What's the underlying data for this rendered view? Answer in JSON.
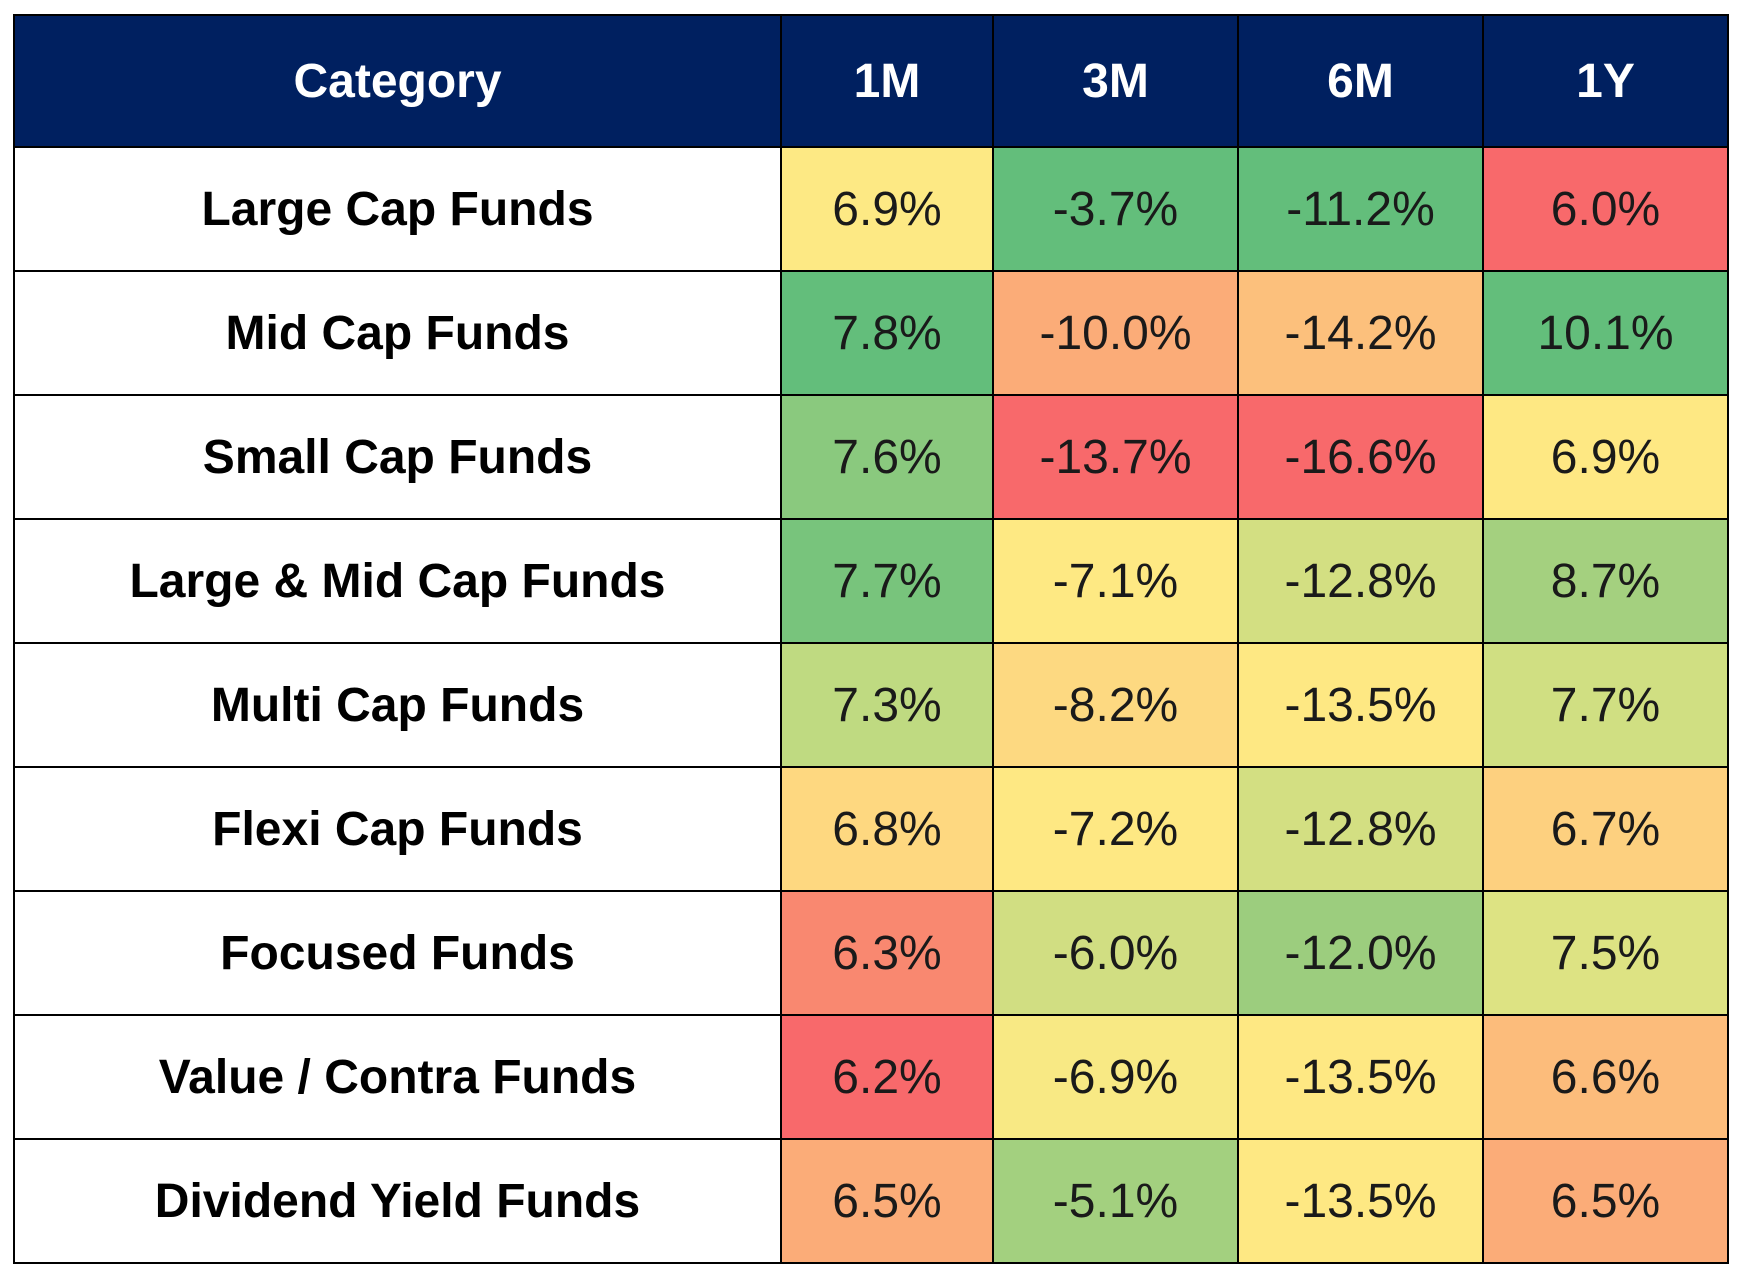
{
  "chart_data": {
    "type": "heatmap",
    "header": {
      "category": "Category",
      "periods": [
        "1M",
        "3M",
        "6M",
        "1Y"
      ]
    },
    "rows": [
      {
        "category": "Large Cap Funds",
        "values": [
          "6.9%",
          "-3.7%",
          "-11.2%",
          "6.0%"
        ],
        "colors": [
          "#fde984",
          "#63be7b",
          "#63be7b",
          "#f8696b"
        ]
      },
      {
        "category": "Mid Cap Funds",
        "values": [
          "7.8%",
          "-10.0%",
          "-14.2%",
          "10.1%"
        ],
        "colors": [
          "#63be7b",
          "#fbac78",
          "#fcc07c",
          "#63be7b"
        ]
      },
      {
        "category": "Small Cap Funds",
        "values": [
          "7.6%",
          "-13.7%",
          "-16.6%",
          "6.9%"
        ],
        "colors": [
          "#8ac97e",
          "#f8696b",
          "#f8696b",
          "#fee883"
        ]
      },
      {
        "category": "Large & Mid Cap Funds",
        "values": [
          "7.7%",
          "-7.1%",
          "-12.8%",
          "8.7%"
        ],
        "colors": [
          "#78c47c",
          "#fee983",
          "#d3df82",
          "#a4d07f"
        ]
      },
      {
        "category": "Multi Cap Funds",
        "values": [
          "7.3%",
          "-8.2%",
          "-13.5%",
          "7.7%"
        ],
        "colors": [
          "#bfda81",
          "#fdd981",
          "#fee883",
          "#d0df82"
        ]
      },
      {
        "category": "Flexi Cap Funds",
        "values": [
          "6.8%",
          "-7.2%",
          "-12.8%",
          "6.7%"
        ],
        "colors": [
          "#fed880",
          "#fee883",
          "#d3df82",
          "#fdd07f"
        ]
      },
      {
        "category": "Focused Funds",
        "values": [
          "6.3%",
          "-6.0%",
          "-12.0%",
          "7.5%"
        ],
        "colors": [
          "#f98870",
          "#d1de82",
          "#9ccd7e",
          "#dde383"
        ]
      },
      {
        "category": "Value / Contra Funds",
        "values": [
          "6.2%",
          "-6.9%",
          "-13.5%",
          "6.6%"
        ],
        "colors": [
          "#f8696b",
          "#f8e984",
          "#fee883",
          "#fcbc7b"
        ]
      },
      {
        "category": "Dividend Yield Funds",
        "values": [
          "6.5%",
          "-5.1%",
          "-13.5%",
          "6.5%"
        ],
        "colors": [
          "#fbac78",
          "#a3d07f",
          "#fee883",
          "#fbac78"
        ]
      }
    ]
  }
}
